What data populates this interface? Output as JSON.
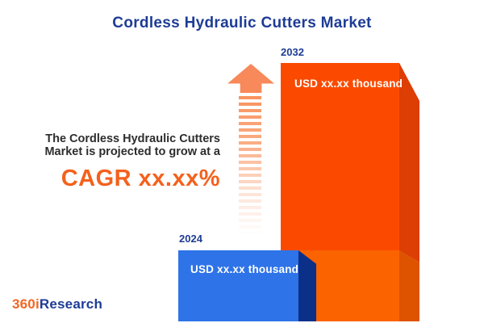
{
  "title": "Cordless Hydraulic Cutters Market",
  "annotation": {
    "line1": "The Cordless Hydraulic Cutters",
    "line2": "Market is projected to grow at a",
    "cagr": "CAGR xx.xx%"
  },
  "bars": [
    {
      "year": "2024",
      "value_label": "USD xx.xx thousand",
      "color": "#2E73E8",
      "side_color": "#0C2F88"
    },
    {
      "year": "2032",
      "value_label": "USD xx.xx thousand",
      "color": "#FB4A00",
      "side_color": "#DC3E04"
    }
  ],
  "logo": {
    "prefix": "360i",
    "suffix": "Research",
    "prefix_color": "#F26722",
    "suffix_color": "#1E3C96"
  },
  "colors": {
    "title_blue": "#1E3C96",
    "cagr_orange": "#F4611D",
    "arrow_orange": "#F8895A",
    "bar_2032_face_upper": "#FB4A00",
    "bar_2032_face_lower": "#FB6300",
    "bar_2032_side_upper": "#DC3E04",
    "bar_2032_side_lower": "#DE5300",
    "bar_2024_face": "#2E73E8",
    "bar_2024_side": "#0C2F88",
    "background": "#FFFFFF"
  },
  "chart_data": {
    "type": "bar",
    "categories": [
      "2024",
      "2032"
    ],
    "values": [
      null,
      null
    ],
    "value_labels": [
      "USD xx.xx thousand",
      "USD xx.xx thousand"
    ],
    "title": "Cordless Hydraulic Cutters Market",
    "annotation": "The Cordless Hydraulic Cutters Market is projected to grow at a CAGR xx.xx%",
    "bar_colors": [
      "#2E73E8",
      "#FB4A00"
    ],
    "legend": "none",
    "grid": false,
    "note": "Values shown as placeholder text (xx.xx); 2032 bar drawn ~3.6x taller than 2024 bar"
  }
}
